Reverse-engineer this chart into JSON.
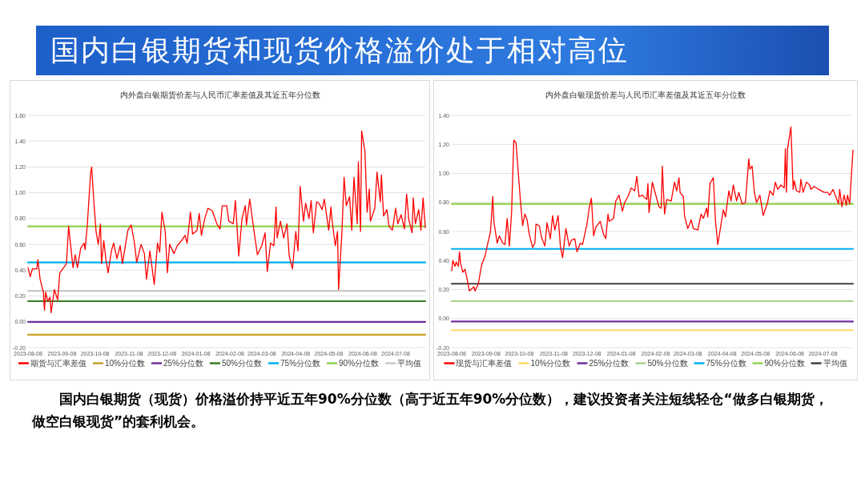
{
  "chart_data": [
    {
      "type": "other",
      "title": "国内白银期货和现货价格溢价处于相对高位"
    },
    {
      "type": "line",
      "title": "内外盘白银期货价差与人民币汇率差值及其近五年分位数",
      "legend": "bottom",
      "grid": "y",
      "xlim": [
        "2023-08-08",
        "2024-08-04"
      ],
      "xticks": [
        "2023-08-08",
        "2023-09-08",
        "2023-10-08",
        "2023-11-08",
        "2023-12-08",
        "2024-01-08",
        "2024-02-08",
        "2024-03-08",
        "2024-04-08",
        "2024-05-08",
        "2024-06-08",
        "2024-07-08"
      ],
      "ylim": [
        -0.2,
        1.6
      ],
      "yticks": [
        {
          "value": -0.2,
          "label": "-0.20"
        },
        {
          "value": 0,
          "label": "0.00"
        },
        {
          "value": 0.2,
          "label": "0.20"
        },
        {
          "value": 0.4,
          "label": "0.40"
        },
        {
          "value": 0.6,
          "label": "0.60"
        },
        {
          "value": 0.8,
          "label": "0.80"
        },
        {
          "value": 1.0,
          "label": "1.00"
        },
        {
          "value": 1.2,
          "label": "1.20"
        },
        {
          "value": 1.4,
          "label": "1.40"
        },
        {
          "value": 1.6,
          "label": "1.60"
        }
      ],
      "series": [
        {
          "name": "期货与汇率差值",
          "color": "#ff0000",
          "x": [
            "2023-08-08",
            "2023-08-10",
            "2023-08-12",
            "2023-08-16",
            "2023-08-17",
            "2023-08-19",
            "2023-08-22",
            "2023-08-23",
            "2023-08-24",
            "2023-08-26",
            "2023-08-28",
            "2023-08-29",
            "2023-09-01",
            "2023-09-04",
            "2023-09-06",
            "2023-09-12",
            "2023-09-14",
            "2023-09-18",
            "2023-09-20",
            "2023-09-22",
            "2023-09-25",
            "2023-09-28",
            "2023-09-29",
            "2023-10-01",
            "2023-10-04",
            "2023-10-05",
            "2023-10-07",
            "2023-10-09",
            "2023-10-11",
            "2023-10-13",
            "2023-10-14",
            "2023-10-16",
            "2023-10-18",
            "2023-10-20",
            "2023-10-23",
            "2023-10-25",
            "2023-10-28",
            "2023-10-31",
            "2023-11-02",
            "2023-11-07",
            "2023-11-10",
            "2023-11-13",
            "2023-11-15",
            "2023-11-19",
            "2023-11-22",
            "2023-11-24",
            "2023-11-27",
            "2023-12-01",
            "2023-12-04",
            "2023-12-06",
            "2023-12-08",
            "2023-12-11",
            "2023-12-13",
            "2023-12-15",
            "2023-12-19",
            "2023-12-22",
            "2023-12-26",
            "2023-12-29",
            "2023-12-31",
            "2024-01-03",
            "2024-01-05",
            "2024-01-09",
            "2024-01-11",
            "2024-01-13",
            "2024-01-16",
            "2024-01-19",
            "2024-01-23",
            "2024-01-27",
            "2024-01-30",
            "2024-02-01",
            "2024-02-05",
            "2024-02-07",
            "2024-02-11",
            "2024-02-13",
            "2024-02-16",
            "2024-02-19",
            "2024-02-22",
            "2024-02-23",
            "2024-02-26",
            "2024-02-29",
            "2024-03-04",
            "2024-03-08",
            "2024-03-11",
            "2024-03-13",
            "2024-03-16",
            "2024-03-19",
            "2024-03-21",
            "2024-03-22",
            "2024-03-25",
            "2024-03-28",
            "2024-03-31",
            "2024-04-02",
            "2024-04-05",
            "2024-04-08",
            "2024-04-10",
            "2024-04-12",
            "2024-04-15",
            "2024-04-17",
            "2024-04-20",
            "2024-04-22",
            "2024-04-24",
            "2024-04-27",
            "2024-04-29",
            "2024-05-02",
            "2024-05-04",
            "2024-05-08",
            "2024-05-10",
            "2024-05-11",
            "2024-05-14",
            "2024-05-16",
            "2024-05-17",
            "2024-05-20",
            "2024-05-22",
            "2024-05-24",
            "2024-05-27",
            "2024-05-29",
            "2024-05-31",
            "2024-06-03",
            "2024-06-04",
            "2024-06-06",
            "2024-06-07",
            "2024-06-10",
            "2024-06-12",
            "2024-06-14",
            "2024-06-15",
            "2024-06-19",
            "2024-06-21",
            "2024-06-24",
            "2024-06-25",
            "2024-06-27",
            "2024-06-30",
            "2024-07-02",
            "2024-07-05",
            "2024-07-08",
            "2024-07-10",
            "2024-07-13",
            "2024-07-16",
            "2024-07-18",
            "2024-07-20",
            "2024-07-23",
            "2024-07-24",
            "2024-07-26",
            "2024-07-29",
            "2024-07-31",
            "2024-08-02",
            "2024-08-04"
          ],
          "values": [
            0.42,
            0.35,
            0.41,
            0.41,
            0.48,
            0.33,
            0.23,
            0.09,
            0.23,
            0.16,
            0.19,
            0.07,
            0.25,
            0.17,
            0.38,
            0.45,
            0.74,
            0.42,
            0.52,
            0.42,
            0.57,
            0.61,
            0.56,
            0.75,
            1.15,
            1.2,
            0.93,
            0.7,
            0.6,
            0.76,
            0.45,
            0.63,
            0.48,
            0.38,
            0.55,
            0.61,
            0.49,
            0.59,
            0.45,
            0.71,
            0.75,
            0.61,
            0.46,
            0.6,
            0.53,
            0.33,
            0.55,
            0.29,
            0.61,
            0.54,
            0.85,
            0.7,
            0.38,
            0.6,
            0.53,
            0.59,
            0.63,
            0.67,
            0.61,
            0.85,
            0.68,
            0.71,
            0.84,
            0.67,
            0.8,
            0.88,
            0.86,
            0.76,
            0.72,
            0.9,
            0.9,
            0.78,
            0.76,
            0.94,
            0.51,
            0.8,
            0.9,
            0.75,
            0.95,
            0.76,
            0.52,
            0.59,
            0.69,
            0.39,
            0.61,
            0.59,
            0.89,
            0.65,
            0.78,
            0.65,
            0.76,
            0.51,
            0.41,
            0.7,
            0.55,
            1.05,
            0.78,
            0.92,
            0.8,
            0.94,
            0.69,
            0.93,
            0.92,
            0.87,
            0.95,
            0.71,
            0.89,
            0.79,
            0.59,
            0.7,
            0.25,
            0.69,
            1.12,
            0.9,
            0.97,
            0.71,
            1.12,
            0.76,
            1.24,
            0.7,
            1.48,
            1.32,
            0.85,
            1.03,
            0.78,
            0.88,
            1.16,
            0.93,
            1.14,
            0.82,
            0.87,
            0.74,
            0.71,
            0.88,
            0.76,
            0.83,
            0.72,
            0.99,
            0.79,
            0.69,
            0.96,
            0.76,
            0.87,
            0.71,
            0.96,
            0.73
          ]
        },
        {
          "name": "10%分位数",
          "color": "#c9a227",
          "x": [
            "2023-08-08",
            "2024-08-04"
          ],
          "values": [
            -0.1,
            -0.1
          ]
        },
        {
          "name": "25%分位数",
          "color": "#7030a0",
          "x": [
            "2023-08-08",
            "2024-08-04"
          ],
          "values": [
            0,
            0
          ]
        },
        {
          "name": "50%分位数",
          "color": "#3a7d22",
          "x": [
            "2023-08-08",
            "2024-08-04"
          ],
          "values": [
            0.16,
            0.16
          ]
        },
        {
          "name": "75%分位数",
          "color": "#00b0f0",
          "x": [
            "2023-08-08",
            "2024-08-04"
          ],
          "values": [
            0.46,
            0.46
          ]
        },
        {
          "name": "90%分位数",
          "color": "#92d050",
          "x": [
            "2023-08-08",
            "2024-08-04"
          ],
          "values": [
            0.74,
            0.74
          ]
        },
        {
          "name": "平均值",
          "color": "#c8c8c8",
          "x": [
            "2023-08-08",
            "2024-08-04"
          ],
          "values": [
            0.24,
            0.24
          ]
        }
      ]
    },
    {
      "type": "line",
      "title": "内外盘白银现货价差与人民币汇率差值及其近五年分位数",
      "legend": "bottom",
      "grid": "y",
      "xlim": [
        "2023-08-08",
        "2024-08-04"
      ],
      "xticks": [
        "2023-08-08",
        "2023-09-08",
        "2023-10-08",
        "2023-11-08",
        "2023-12-08",
        "2024-01-08",
        "2024-02-08",
        "2024-03-08",
        "2024-04-08",
        "2024-05-08",
        "2024-06-08",
        "2024-07-08"
      ],
      "ylim": [
        -0.2,
        1.4
      ],
      "yticks": [
        {
          "value": -0.2,
          "label": "-0.20"
        },
        {
          "value": 0,
          "label": "0.00"
        },
        {
          "value": 0.2,
          "label": "0.20"
        },
        {
          "value": 0.4,
          "label": "0.40"
        },
        {
          "value": 0.6,
          "label": "0.60"
        },
        {
          "value": 0.8,
          "label": "0.80"
        },
        {
          "value": 1.0,
          "label": "1.00"
        },
        {
          "value": 1.2,
          "label": "1.20"
        },
        {
          "value": 1.4,
          "label": "1.40"
        }
      ],
      "series": [
        {
          "name": "现货与汇率差值",
          "color": "#ff0000",
          "x": [
            "2023-08-08",
            "2023-08-09",
            "2023-08-11",
            "2023-08-12",
            "2023-08-14",
            "2023-08-15",
            "2023-08-16",
            "2023-08-18",
            "2023-08-20",
            "2023-08-22",
            "2023-08-24",
            "2023-08-28",
            "2023-08-29",
            "2023-09-01",
            "2023-09-04",
            "2023-09-07",
            "2023-09-09",
            "2023-09-12",
            "2023-09-14",
            "2023-09-15",
            "2023-09-18",
            "2023-09-20",
            "2023-09-23",
            "2023-09-25",
            "2023-09-27",
            "2023-09-29",
            "2023-10-01",
            "2023-10-03",
            "2023-10-05",
            "2023-10-09",
            "2023-10-11",
            "2023-10-13",
            "2023-10-15",
            "2023-10-17",
            "2023-10-20",
            "2023-10-22",
            "2023-10-23",
            "2023-10-26",
            "2023-10-28",
            "2023-10-31",
            "2023-11-02",
            "2023-11-05",
            "2023-11-07",
            "2023-11-09",
            "2023-11-12",
            "2023-11-14",
            "2023-11-16",
            "2023-11-19",
            "2023-11-22",
            "2023-11-24",
            "2023-11-27",
            "2023-11-29",
            "2023-12-02",
            "2023-12-04",
            "2023-12-08",
            "2023-12-10",
            "2023-12-12",
            "2023-12-14",
            "2023-12-16",
            "2023-12-20",
            "2023-12-23",
            "2023-12-25",
            "2023-12-27",
            "2023-12-28",
            "2024-01-01",
            "2024-01-03",
            "2024-01-06",
            "2024-01-09",
            "2024-01-11",
            "2024-01-14",
            "2024-01-17",
            "2024-01-20",
            "2024-01-22",
            "2024-01-24",
            "2024-01-27",
            "2024-01-31",
            "2024-02-01",
            "2024-02-02",
            "2024-02-05",
            "2024-02-07",
            "2024-02-11",
            "2024-02-13",
            "2024-02-14",
            "2024-02-16",
            "2024-02-18",
            "2024-02-22",
            "2024-02-25",
            "2024-02-27",
            "2024-02-29",
            "2024-03-01",
            "2024-03-04",
            "2024-03-05",
            "2024-03-08",
            "2024-03-11",
            "2024-03-13",
            "2024-03-17",
            "2024-03-20",
            "2024-03-22",
            "2024-03-25",
            "2024-03-26",
            "2024-03-28",
            "2024-03-31",
            "2024-04-02",
            "2024-04-04",
            "2024-04-07",
            "2024-04-09",
            "2024-04-11",
            "2024-04-14",
            "2024-04-16",
            "2024-04-18",
            "2024-04-21",
            "2024-04-23",
            "2024-04-26",
            "2024-04-29",
            "2024-05-02",
            "2024-05-03",
            "2024-05-05",
            "2024-05-07",
            "2024-05-09",
            "2024-05-12",
            "2024-05-15",
            "2024-05-19",
            "2024-05-21",
            "2024-05-24",
            "2024-05-26",
            "2024-05-28",
            "2024-05-31",
            "2024-06-03",
            "2024-06-04",
            "2024-06-05",
            "2024-06-06",
            "2024-06-09",
            "2024-06-11",
            "2024-06-12",
            "2024-06-14",
            "2024-06-17",
            "2024-06-18",
            "2024-06-20",
            "2024-06-23",
            "2024-06-26",
            "2024-06-27",
            "2024-06-30",
            "2024-07-04",
            "2024-07-09",
            "2024-07-12",
            "2024-07-14",
            "2024-07-17",
            "2024-07-19",
            "2024-07-22",
            "2024-07-23",
            "2024-07-25",
            "2024-07-27",
            "2024-07-29",
            "2024-07-30",
            "2024-08-01",
            "2024-08-04"
          ],
          "values": [
            0.33,
            0.4,
            0.36,
            0.39,
            0.36,
            0.46,
            0.38,
            0.32,
            0.34,
            0.27,
            0.19,
            0.22,
            0.19,
            0.24,
            0.37,
            0.43,
            0.5,
            0.6,
            0.84,
            0.67,
            0.52,
            0.57,
            0.52,
            0.51,
            0.69,
            0.5,
            0.73,
            1.23,
            1.21,
            0.81,
            0.64,
            0.72,
            0.68,
            0.58,
            0.49,
            0.52,
            0.65,
            0.64,
            0.56,
            0.5,
            0.66,
            0.55,
            0.71,
            0.61,
            0.71,
            0.5,
            0.42,
            0.62,
            0.5,
            0.54,
            0.55,
            0.46,
            0.52,
            0.51,
            0.65,
            0.76,
            0.83,
            0.57,
            0.63,
            0.67,
            0.58,
            0.55,
            0.72,
            0.67,
            0.69,
            0.81,
            0.85,
            0.74,
            0.8,
            0.84,
            0.9,
            0.88,
            0.98,
            0.84,
            0.85,
            0.82,
            0.93,
            0.73,
            0.94,
            0.88,
            0.77,
            0.76,
            1.05,
            0.72,
            0.82,
            0.81,
            0.94,
            0.88,
            0.97,
            0.87,
            0.84,
            0.71,
            0.62,
            0.68,
            0.62,
            0.61,
            0.72,
            0.69,
            0.76,
            0.7,
            0.93,
            0.97,
            0.67,
            0.51,
            0.65,
            0.75,
            0.7,
            0.88,
            0.81,
            0.92,
            0.81,
            0.87,
            0.79,
            0.8,
            1.1,
            1.03,
            1.05,
            0.87,
            0.8,
            0.85,
            0.71,
            0.8,
            0.88,
            0.85,
            0.94,
            0.89,
            0.92,
            0.9,
            1.17,
            0.87,
            1.17,
            1.32,
            0.89,
            0.95,
            0.88,
            0.87,
            0.96,
            0.87,
            0.94,
            0.92,
            0.89,
            0.91,
            0.89,
            0.87,
            0.87,
            0.85,
            0.89,
            0.85,
            0.79,
            0.89,
            0.77,
            0.85,
            0.78,
            0.85,
            0.79,
            1.16
          ]
        },
        {
          "name": "10%分位数",
          "color": "#ffd966",
          "x": [
            "2023-08-08",
            "2024-08-04"
          ],
          "values": [
            -0.08,
            -0.08
          ]
        },
        {
          "name": "25%分位数",
          "color": "#7030a0",
          "x": [
            "2023-08-08",
            "2024-08-04"
          ],
          "values": [
            -0.02,
            -0.02
          ]
        },
        {
          "name": "50%分位数",
          "color": "#a9d18e",
          "x": [
            "2023-08-08",
            "2024-08-04"
          ],
          "values": [
            0.12,
            0.12
          ]
        },
        {
          "name": "75%分位数",
          "color": "#00b0f0",
          "x": [
            "2023-08-08",
            "2024-08-04"
          ],
          "values": [
            0.48,
            0.48
          ]
        },
        {
          "name": "90%分位数",
          "color": "#92d050",
          "x": [
            "2023-08-08",
            "2024-08-04"
          ],
          "values": [
            0.79,
            0.79
          ]
        },
        {
          "name": "平均值",
          "color": "#404040",
          "x": [
            "2023-08-08",
            "2024-08-04"
          ],
          "values": [
            0.24,
            0.24
          ]
        }
      ]
    },
    {
      "type": "other",
      "annotations": [
        "国内白银期货（现货）价格溢价持平近五年90%分位数（高于近五年90%分位数），建议投资者关注短线轻仓“做多白银期货，做空白银现货”的套利机会。"
      ]
    }
  ]
}
